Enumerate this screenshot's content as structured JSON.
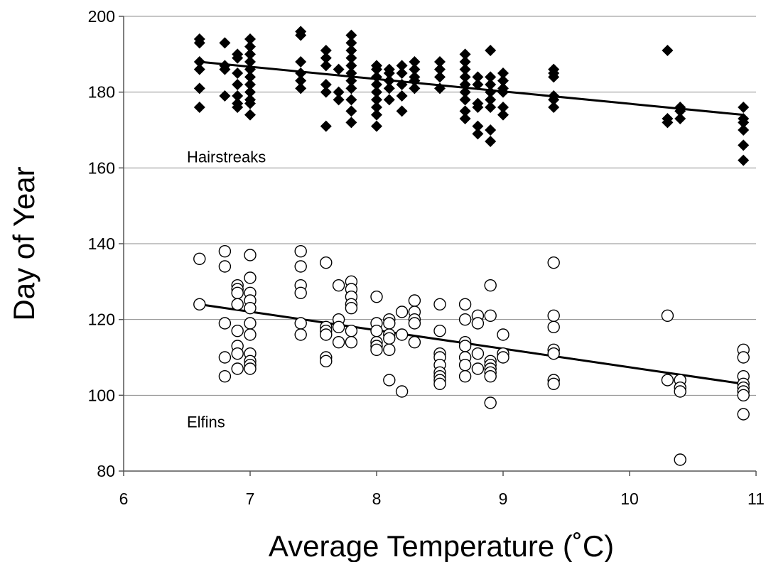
{
  "chart_data": {
    "type": "scatter",
    "xlabel": "Average Temperature (˚C)",
    "ylabel": "Day of Year",
    "xlim": [
      6,
      11
    ],
    "ylim": [
      80,
      200
    ],
    "xticks": [
      "6",
      "7",
      "8",
      "9",
      "10",
      "11"
    ],
    "yticks": [
      "80",
      "100",
      "120",
      "140",
      "160",
      "180",
      "200"
    ],
    "grid": "horizontal",
    "legend": "none",
    "annotations": [
      {
        "text": "Hairstreaks",
        "x": 6.5,
        "y": 163
      },
      {
        "text": "Elfins",
        "x": 6.5,
        "y": 93
      }
    ],
    "series": [
      {
        "name": "Hairstreaks",
        "marker": "diamond-filled",
        "points": [
          [
            6.6,
            194
          ],
          [
            6.6,
            193
          ],
          [
            6.6,
            188
          ],
          [
            6.6,
            186
          ],
          [
            6.6,
            181
          ],
          [
            6.6,
            176
          ],
          [
            6.8,
            193
          ],
          [
            6.8,
            187
          ],
          [
            6.8,
            186
          ],
          [
            6.8,
            179
          ],
          [
            6.9,
            190
          ],
          [
            6.9,
            189
          ],
          [
            6.9,
            185
          ],
          [
            6.9,
            182
          ],
          [
            6.9,
            179
          ],
          [
            6.9,
            177
          ],
          [
            6.9,
            176
          ],
          [
            7.0,
            194
          ],
          [
            7.0,
            192
          ],
          [
            7.0,
            190
          ],
          [
            7.0,
            188
          ],
          [
            7.0,
            186
          ],
          [
            7.0,
            184
          ],
          [
            7.0,
            182
          ],
          [
            7.0,
            180
          ],
          [
            7.0,
            178
          ],
          [
            7.0,
            177
          ],
          [
            7.0,
            174
          ],
          [
            7.4,
            196
          ],
          [
            7.4,
            195
          ],
          [
            7.4,
            188
          ],
          [
            7.4,
            185
          ],
          [
            7.4,
            183
          ],
          [
            7.4,
            181
          ],
          [
            7.6,
            191
          ],
          [
            7.6,
            189
          ],
          [
            7.6,
            187
          ],
          [
            7.6,
            182
          ],
          [
            7.6,
            180
          ],
          [
            7.6,
            171
          ],
          [
            7.7,
            186
          ],
          [
            7.7,
            180
          ],
          [
            7.7,
            178
          ],
          [
            7.8,
            195
          ],
          [
            7.8,
            193
          ],
          [
            7.8,
            191
          ],
          [
            7.8,
            189
          ],
          [
            7.8,
            187
          ],
          [
            7.8,
            185
          ],
          [
            7.8,
            183
          ],
          [
            7.8,
            181
          ],
          [
            7.8,
            178
          ],
          [
            7.8,
            175
          ],
          [
            7.8,
            172
          ],
          [
            8.0,
            187
          ],
          [
            8.0,
            186
          ],
          [
            8.0,
            184
          ],
          [
            8.0,
            182
          ],
          [
            8.0,
            180
          ],
          [
            8.0,
            178
          ],
          [
            8.0,
            176
          ],
          [
            8.0,
            174
          ],
          [
            8.0,
            171
          ],
          [
            8.1,
            186
          ],
          [
            8.1,
            185
          ],
          [
            8.1,
            183
          ],
          [
            8.1,
            181
          ],
          [
            8.1,
            178
          ],
          [
            8.2,
            187
          ],
          [
            8.2,
            185
          ],
          [
            8.2,
            182
          ],
          [
            8.2,
            179
          ],
          [
            8.2,
            175
          ],
          [
            8.3,
            188
          ],
          [
            8.3,
            186
          ],
          [
            8.3,
            184
          ],
          [
            8.3,
            183
          ],
          [
            8.3,
            181
          ],
          [
            8.5,
            188
          ],
          [
            8.5,
            186
          ],
          [
            8.5,
            184
          ],
          [
            8.5,
            181
          ],
          [
            8.7,
            190
          ],
          [
            8.7,
            188
          ],
          [
            8.7,
            186
          ],
          [
            8.7,
            184
          ],
          [
            8.7,
            182
          ],
          [
            8.7,
            180
          ],
          [
            8.7,
            178
          ],
          [
            8.7,
            175
          ],
          [
            8.7,
            173
          ],
          [
            8.8,
            184
          ],
          [
            8.8,
            182
          ],
          [
            8.8,
            177
          ],
          [
            8.8,
            176
          ],
          [
            8.8,
            171
          ],
          [
            8.8,
            169
          ],
          [
            8.9,
            191
          ],
          [
            8.9,
            184
          ],
          [
            8.9,
            182
          ],
          [
            8.9,
            180
          ],
          [
            8.9,
            178
          ],
          [
            8.9,
            176
          ],
          [
            8.9,
            170
          ],
          [
            8.9,
            167
          ],
          [
            9.0,
            185
          ],
          [
            9.0,
            183
          ],
          [
            9.0,
            181
          ],
          [
            9.0,
            180
          ],
          [
            9.0,
            176
          ],
          [
            9.0,
            174
          ],
          [
            9.4,
            186
          ],
          [
            9.4,
            185
          ],
          [
            9.4,
            184
          ],
          [
            9.4,
            179
          ],
          [
            9.4,
            178
          ],
          [
            9.4,
            176
          ],
          [
            10.3,
            191
          ],
          [
            10.3,
            173
          ],
          [
            10.3,
            172
          ],
          [
            10.4,
            176
          ],
          [
            10.4,
            175
          ],
          [
            10.4,
            173
          ],
          [
            10.9,
            176
          ],
          [
            10.9,
            173
          ],
          [
            10.9,
            172
          ],
          [
            10.9,
            170
          ],
          [
            10.9,
            166
          ],
          [
            10.9,
            162
          ]
        ],
        "trendline": [
          [
            6.6,
            188
          ],
          [
            10.9,
            174
          ]
        ]
      },
      {
        "name": "Elfins",
        "marker": "circle-open",
        "points": [
          [
            6.6,
            136
          ],
          [
            6.6,
            124
          ],
          [
            6.8,
            138
          ],
          [
            6.8,
            134
          ],
          [
            6.8,
            119
          ],
          [
            6.8,
            110
          ],
          [
            6.8,
            105
          ],
          [
            6.9,
            129
          ],
          [
            6.9,
            128
          ],
          [
            6.9,
            127
          ],
          [
            6.9,
            124
          ],
          [
            6.9,
            117
          ],
          [
            6.9,
            113
          ],
          [
            6.9,
            111
          ],
          [
            6.9,
            107
          ],
          [
            7.0,
            137
          ],
          [
            7.0,
            131
          ],
          [
            7.0,
            127
          ],
          [
            7.0,
            125
          ],
          [
            7.0,
            123
          ],
          [
            7.0,
            119
          ],
          [
            7.0,
            116
          ],
          [
            7.0,
            111
          ],
          [
            7.0,
            109
          ],
          [
            7.0,
            108
          ],
          [
            7.0,
            107
          ],
          [
            7.4,
            138
          ],
          [
            7.4,
            134
          ],
          [
            7.4,
            129
          ],
          [
            7.4,
            127
          ],
          [
            7.4,
            119
          ],
          [
            7.4,
            116
          ],
          [
            7.6,
            135
          ],
          [
            7.6,
            118
          ],
          [
            7.6,
            117
          ],
          [
            7.6,
            116
          ],
          [
            7.6,
            110
          ],
          [
            7.6,
            109
          ],
          [
            7.7,
            129
          ],
          [
            7.7,
            120
          ],
          [
            7.7,
            118
          ],
          [
            7.7,
            114
          ],
          [
            7.8,
            130
          ],
          [
            7.8,
            128
          ],
          [
            7.8,
            126
          ],
          [
            7.8,
            124
          ],
          [
            7.8,
            123
          ],
          [
            7.8,
            117
          ],
          [
            7.8,
            114
          ],
          [
            8.0,
            126
          ],
          [
            8.0,
            119
          ],
          [
            8.0,
            117
          ],
          [
            8.0,
            114
          ],
          [
            8.0,
            113
          ],
          [
            8.0,
            112
          ],
          [
            8.1,
            120
          ],
          [
            8.1,
            119
          ],
          [
            8.1,
            116
          ],
          [
            8.1,
            115
          ],
          [
            8.1,
            112
          ],
          [
            8.1,
            104
          ],
          [
            8.2,
            122
          ],
          [
            8.2,
            116
          ],
          [
            8.2,
            101
          ],
          [
            8.3,
            125
          ],
          [
            8.3,
            122
          ],
          [
            8.3,
            120
          ],
          [
            8.3,
            119
          ],
          [
            8.3,
            114
          ],
          [
            8.5,
            124
          ],
          [
            8.5,
            117
          ],
          [
            8.5,
            111
          ],
          [
            8.5,
            110
          ],
          [
            8.5,
            108
          ],
          [
            8.5,
            106
          ],
          [
            8.5,
            105
          ],
          [
            8.5,
            104
          ],
          [
            8.5,
            103
          ],
          [
            8.7,
            124
          ],
          [
            8.7,
            120
          ],
          [
            8.7,
            114
          ],
          [
            8.7,
            113
          ],
          [
            8.7,
            110
          ],
          [
            8.7,
            108
          ],
          [
            8.7,
            105
          ],
          [
            8.8,
            121
          ],
          [
            8.8,
            119
          ],
          [
            8.8,
            111
          ],
          [
            8.8,
            107
          ],
          [
            8.9,
            129
          ],
          [
            8.9,
            121
          ],
          [
            8.9,
            109
          ],
          [
            8.9,
            108
          ],
          [
            8.9,
            107
          ],
          [
            8.9,
            106
          ],
          [
            8.9,
            105
          ],
          [
            8.9,
            98
          ],
          [
            9.0,
            116
          ],
          [
            9.0,
            111
          ],
          [
            9.0,
            110
          ],
          [
            9.4,
            135
          ],
          [
            9.4,
            121
          ],
          [
            9.4,
            118
          ],
          [
            9.4,
            112
          ],
          [
            9.4,
            111
          ],
          [
            9.4,
            104
          ],
          [
            9.4,
            103
          ],
          [
            10.3,
            121
          ],
          [
            10.3,
            104
          ],
          [
            10.4,
            104
          ],
          [
            10.4,
            102
          ],
          [
            10.4,
            101
          ],
          [
            10.4,
            83
          ],
          [
            10.9,
            112
          ],
          [
            10.9,
            110
          ],
          [
            10.9,
            105
          ],
          [
            10.9,
            103
          ],
          [
            10.9,
            102
          ],
          [
            10.9,
            101
          ],
          [
            10.9,
            100
          ],
          [
            10.9,
            95
          ]
        ],
        "trendline": [
          [
            6.6,
            124
          ],
          [
            10.9,
            103
          ]
        ]
      }
    ]
  }
}
